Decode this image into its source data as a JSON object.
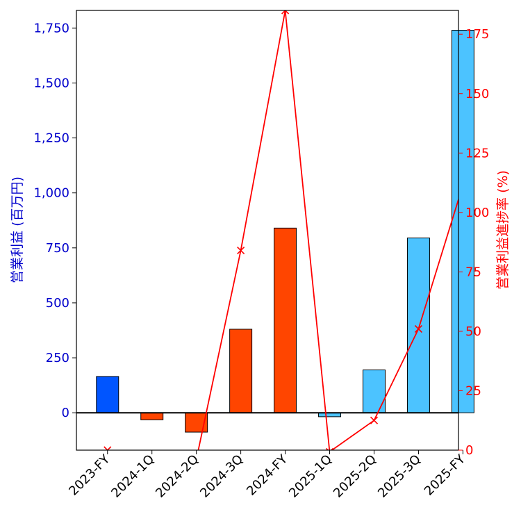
{
  "chart_data": {
    "type": "bar",
    "categories": [
      "2023-FY",
      "2024-1Q",
      "2024-2Q",
      "2024-3Q",
      "2024-FY",
      "2025-1Q",
      "2025-2Q",
      "2025-3Q",
      "2025-FY"
    ],
    "series": [
      {
        "name": "",
        "axis": "left",
        "type": "bar",
        "values": [
          165,
          -32,
          -88,
          380,
          840,
          -18,
          195,
          795,
          1740
        ],
        "colors": [
          "#0055ff",
          "#ff4500",
          "#ff4500",
          "#ff4500",
          "#ff4500",
          "#4cc3ff",
          "#4cc3ff",
          "#4cc3ff",
          "#4cc3ff"
        ]
      },
      {
        "name": "",
        "axis": "right",
        "type": "line",
        "color": "#ff0000",
        "marker": "x",
        "values": [
          0,
          null,
          -3.8,
          84,
          185,
          -0.7,
          12.5,
          51,
          111.5
        ]
      }
    ],
    "xlabel": "",
    "ylabel_left": "営業利益 (百万円)",
    "ylabel_right": "営業利益進捗率 (%)",
    "ylim_left": [
      -170,
      1830
    ],
    "ylim_right": [
      0,
      185
    ],
    "yticks_left": [
      {
        "value": 0,
        "label": "0"
      },
      {
        "value": 250,
        "label": "250"
      },
      {
        "value": 500,
        "label": "500"
      },
      {
        "value": 750,
        "label": "750"
      },
      {
        "value": 1000,
        "label": "1,000"
      },
      {
        "value": 1250,
        "label": "1,250"
      },
      {
        "value": 1500,
        "label": "1,500"
      },
      {
        "value": 1750,
        "label": "1,750"
      }
    ],
    "yticks_right": [
      {
        "value": 0,
        "label": "0"
      },
      {
        "value": 25,
        "label": "25"
      },
      {
        "value": 50,
        "label": "50"
      },
      {
        "value": 75,
        "label": "75"
      },
      {
        "value": 100,
        "label": "100"
      },
      {
        "value": 125,
        "label": "125"
      },
      {
        "value": 150,
        "label": "150"
      },
      {
        "value": 175,
        "label": "175"
      }
    ],
    "left_axis_color": "#0000cc",
    "right_axis_color": "#ff0000",
    "zero_line": true,
    "grid": false,
    "legend": "none"
  }
}
